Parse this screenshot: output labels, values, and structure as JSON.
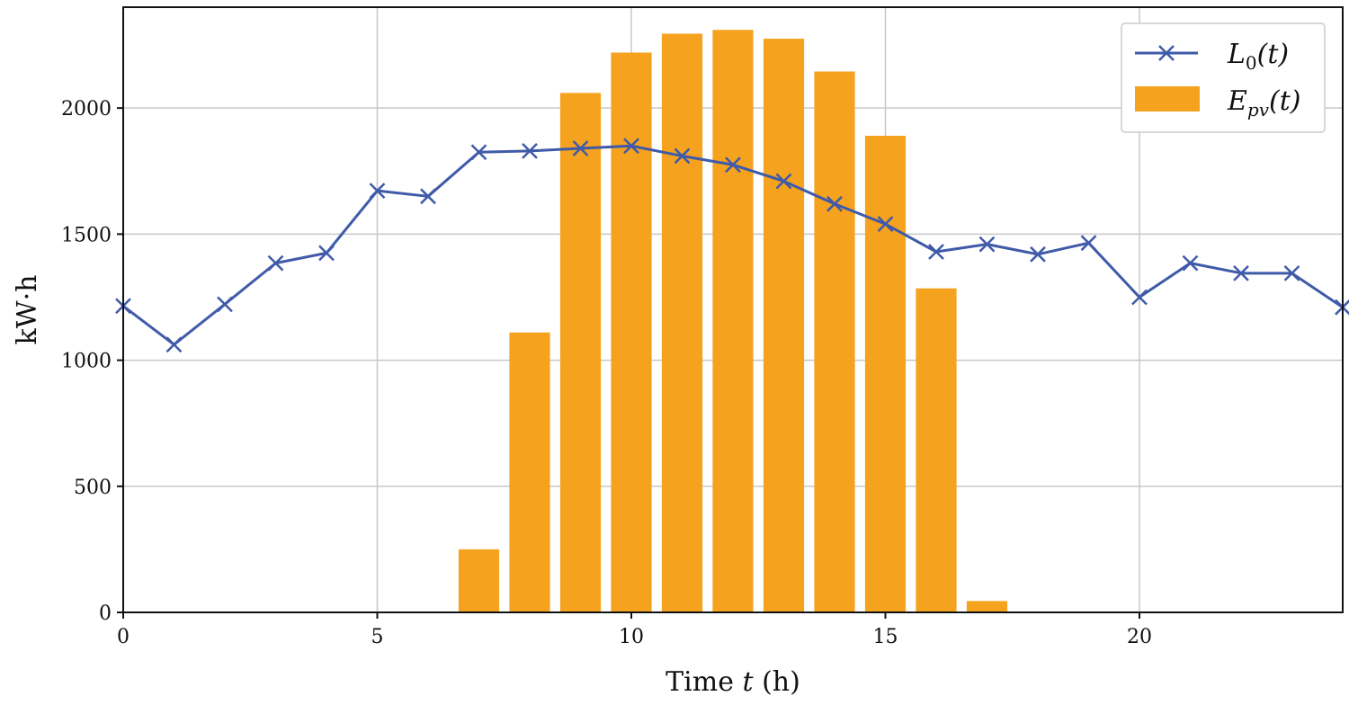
{
  "chart_data": {
    "type": "bar+line",
    "xlabel_prefix": "Time ",
    "xlabel_var": "t",
    "xlabel_suffix": " (h)",
    "ylabel": "kW·h",
    "xlim": [
      0,
      24
    ],
    "ylim": [
      0,
      2400
    ],
    "xticks": [
      0,
      5,
      10,
      15,
      20
    ],
    "yticks": [
      0,
      500,
      1000,
      1500,
      2000
    ],
    "grid": true,
    "legend_position": "top-right",
    "colors": {
      "line": "#3f5aa9",
      "bar": "#f5a21f",
      "grid": "#c8c8c8",
      "axes": "#111111"
    },
    "series": [
      {
        "key": "L0",
        "kind": "line",
        "marker": "x",
        "legend_main": "L",
        "legend_sub": "0",
        "legend_tail": "(t)",
        "x": [
          0,
          1,
          2,
          3,
          4,
          5,
          6,
          7,
          8,
          9,
          10,
          11,
          12,
          13,
          14,
          15,
          16,
          17,
          18,
          19,
          20,
          21,
          22,
          23,
          24
        ],
        "values": [
          1215,
          1062,
          1222,
          1385,
          1425,
          1672,
          1650,
          1825,
          1830,
          1840,
          1850,
          1810,
          1775,
          1710,
          1620,
          1540,
          1430,
          1460,
          1420,
          1465,
          1250,
          1385,
          1345,
          1345,
          1210
        ]
      },
      {
        "key": "Epv",
        "kind": "bar",
        "legend_main": "E",
        "legend_sub": "pv",
        "legend_tail": "(t)",
        "x": [
          7,
          8,
          9,
          10,
          11,
          12,
          13,
          14,
          15,
          16,
          17
        ],
        "values": [
          250,
          1110,
          2060,
          2220,
          2295,
          2310,
          2275,
          2145,
          1890,
          1285,
          45
        ]
      }
    ]
  }
}
